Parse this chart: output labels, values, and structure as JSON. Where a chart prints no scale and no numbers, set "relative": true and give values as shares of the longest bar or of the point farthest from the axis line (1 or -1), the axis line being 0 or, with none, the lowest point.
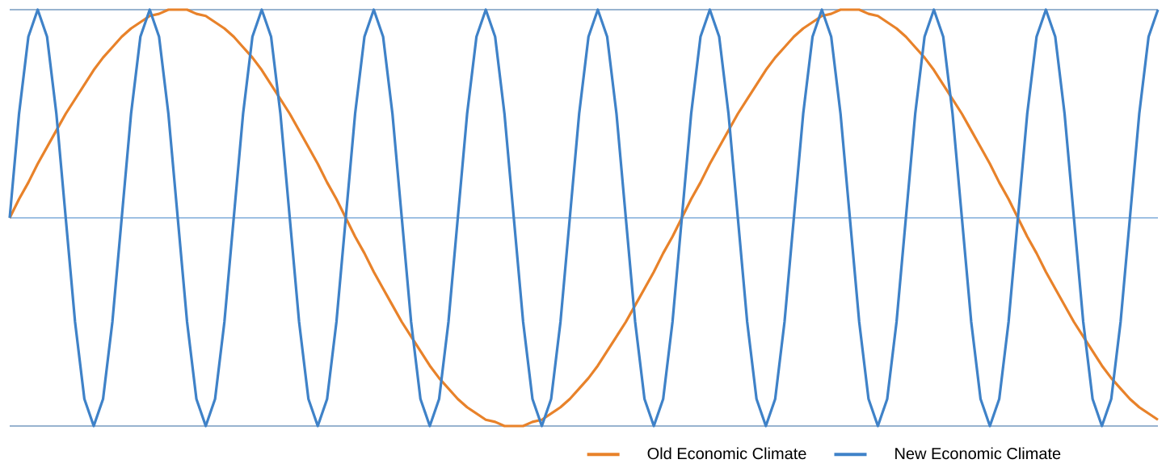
{
  "chart_data": {
    "type": "line",
    "relative": true,
    "grid": "y",
    "legend": "bottom",
    "ref_lines": [
      {
        "axis": "y",
        "value": 0,
        "color": "#3f82c8"
      }
    ],
    "marker": "none",
    "line_style": "solid",
    "categories": [
      null,
      null,
      null,
      null,
      null,
      null,
      null,
      null,
      null,
      null,
      null,
      null,
      null,
      null,
      null,
      null,
      null,
      null,
      null,
      null,
      null,
      null,
      null,
      null,
      null,
      null,
      null,
      null,
      null,
      null,
      null,
      null,
      null,
      null,
      null,
      null,
      null,
      null,
      null,
      null,
      null,
      null,
      null,
      null,
      null,
      null,
      null,
      null,
      null,
      null,
      null,
      null,
      null,
      null,
      null,
      null,
      null,
      null,
      null,
      null,
      null,
      null,
      null,
      null,
      null,
      null,
      null,
      null,
      null,
      null,
      null,
      null,
      null,
      null,
      null,
      null,
      null,
      null,
      null,
      null,
      null,
      null,
      null,
      null,
      null,
      null,
      null,
      null,
      null,
      null,
      null,
      null,
      null,
      null,
      null,
      null,
      null,
      null,
      null,
      null,
      null,
      null,
      null,
      null,
      null,
      null,
      null,
      null,
      null,
      null,
      null,
      null,
      null,
      null,
      null,
      null,
      null,
      null,
      null,
      null,
      null,
      null,
      null,
      null
    ],
    "series": [
      {
        "name": "Old Economic Climate",
        "color": "#e8822a",
        "values": [
          0,
          0.09,
          0.17,
          0.26,
          0.34,
          0.42,
          0.5,
          0.57,
          0.64,
          0.71,
          0.77,
          0.82,
          0.87,
          0.91,
          0.94,
          0.97,
          0.98,
          1,
          1,
          1,
          0.98,
          0.97,
          0.94,
          0.91,
          0.87,
          0.82,
          0.77,
          0.71,
          0.64,
          0.57,
          0.5,
          0.42,
          0.34,
          0.26,
          0.17,
          0.09,
          0,
          -0.09,
          -0.17,
          -0.26,
          -0.34,
          -0.42,
          -0.5,
          -0.57,
          -0.64,
          -0.71,
          -0.77,
          -0.82,
          -0.87,
          -0.91,
          -0.94,
          -0.97,
          -0.98,
          -1,
          -1,
          -1,
          -0.98,
          -0.97,
          -0.94,
          -0.91,
          -0.87,
          -0.82,
          -0.77,
          -0.71,
          -0.64,
          -0.57,
          -0.5,
          -0.42,
          -0.34,
          -0.26,
          -0.17,
          -0.09,
          0,
          0.09,
          0.17,
          0.26,
          0.34,
          0.42,
          0.5,
          0.57,
          0.64,
          0.71,
          0.77,
          0.82,
          0.87,
          0.91,
          0.94,
          0.97,
          0.98,
          1,
          1,
          1,
          0.98,
          0.97,
          0.94,
          0.91,
          0.87,
          0.82,
          0.77,
          0.71,
          0.64,
          0.57,
          0.5,
          0.42,
          0.34,
          0.26,
          0.17,
          0.09,
          0,
          -0.09,
          -0.17,
          -0.26,
          -0.34,
          -0.42,
          -0.5,
          -0.57,
          -0.64,
          -0.71,
          -0.77,
          -0.82,
          -0.87,
          -0.91,
          -0.94,
          -0.97
        ]
      },
      {
        "name": "New Economic Climate",
        "color": "#3f82c8",
        "values": [
          0,
          0.5,
          0.87,
          1,
          0.87,
          0.5,
          0,
          -0.5,
          -0.87,
          -1,
          -0.87,
          -0.5,
          0,
          0.5,
          0.87,
          1,
          0.87,
          0.5,
          0,
          -0.5,
          -0.87,
          -1,
          -0.87,
          -0.5,
          0,
          0.5,
          0.87,
          1,
          0.87,
          0.5,
          0,
          -0.5,
          -0.87,
          -1,
          -0.87,
          -0.5,
          0,
          0.5,
          0.87,
          1,
          0.87,
          0.5,
          0,
          -0.5,
          -0.87,
          -1,
          -0.87,
          -0.5,
          0,
          0.5,
          0.87,
          1,
          0.87,
          0.5,
          0,
          -0.5,
          -0.87,
          -1,
          -0.87,
          -0.5,
          0,
          0.5,
          0.87,
          1,
          0.87,
          0.5,
          0,
          -0.5,
          -0.87,
          -1,
          -0.87,
          -0.5,
          0,
          0.5,
          0.87,
          1,
          0.87,
          0.5,
          0,
          -0.5,
          -0.87,
          -1,
          -0.87,
          -0.5,
          0,
          0.5,
          0.87,
          1,
          0.87,
          0.5,
          0,
          -0.5,
          -0.87,
          -1,
          -0.87,
          -0.5,
          0,
          0.5,
          0.87,
          1,
          0.87,
          0.5,
          0,
          -0.5,
          -0.87,
          -1,
          -0.87,
          -0.5,
          0,
          0.5,
          0.87,
          1,
          0.87,
          0.5,
          0,
          -0.5,
          -0.87,
          -1,
          -0.87,
          -0.5,
          0,
          0.5,
          0.87,
          1
        ]
      }
    ]
  }
}
